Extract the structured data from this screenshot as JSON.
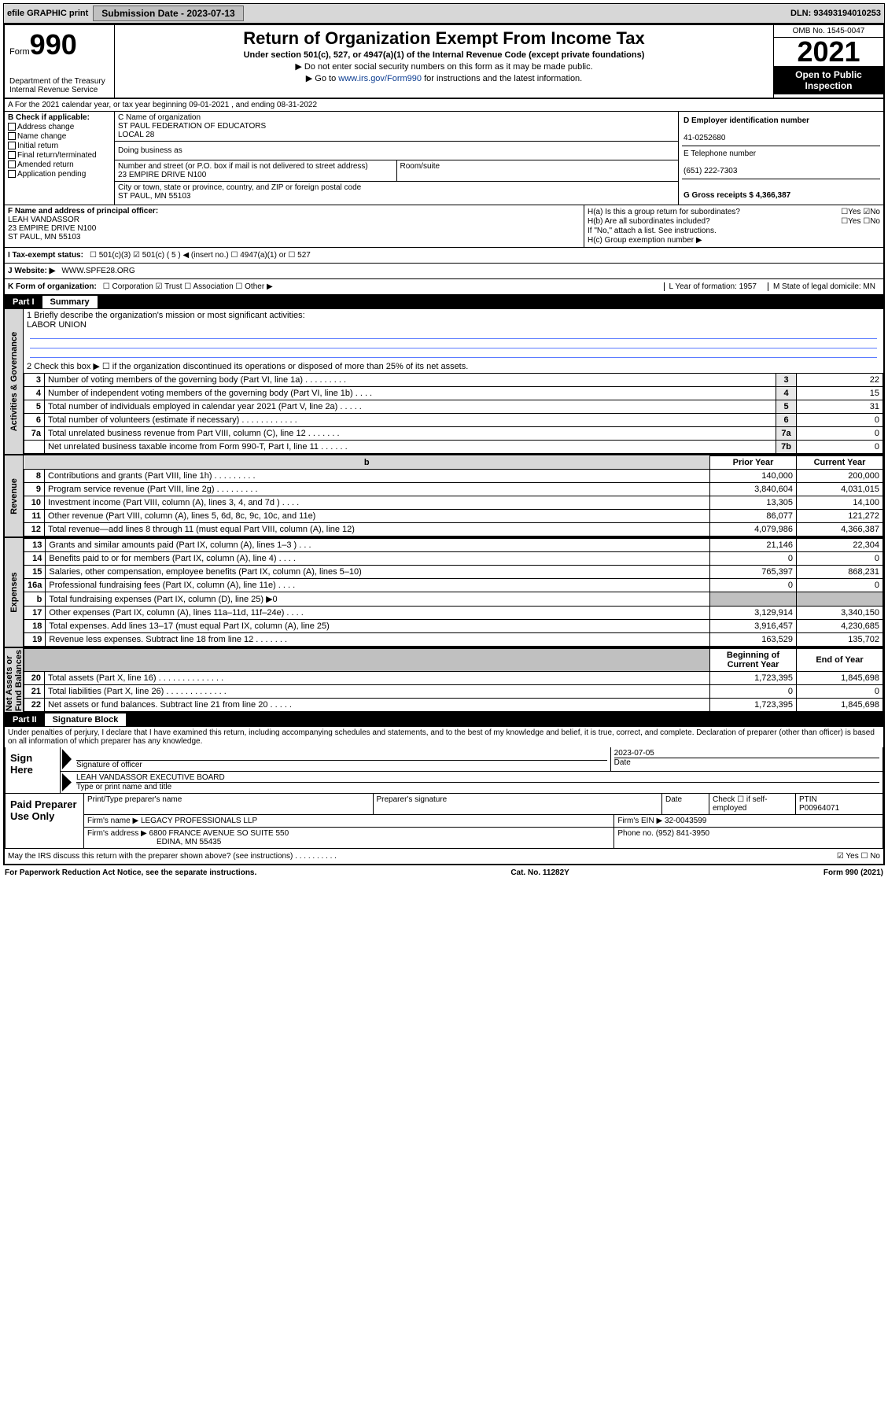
{
  "topbar": {
    "efile": "efile GRAPHIC print",
    "subdate_label": "Submission Date - 2023-07-13",
    "dln": "DLN: 93493194010253"
  },
  "header": {
    "form_word": "Form",
    "form_num": "990",
    "dept": "Department of the Treasury\nInternal Revenue Service",
    "title": "Return of Organization Exempt From Income Tax",
    "sub": "Under section 501(c), 527, or 4947(a)(1) of the Internal Revenue Code (except private foundations)",
    "note1": "▶ Do not enter social security numbers on this form as it may be made public.",
    "note2a": "▶ Go to ",
    "note2link": "www.irs.gov/Form990",
    "note2b": " for instructions and the latest information.",
    "omb": "OMB No. 1545-0047",
    "year": "2021",
    "open": "Open to Public Inspection"
  },
  "row_a": "A For the 2021 calendar year, or tax year beginning 09-01-2021   , and ending 08-31-2022",
  "col_b": {
    "head": "B Check if applicable:",
    "items": [
      "Address change",
      "Name change",
      "Initial return",
      "Final return/terminated",
      "Amended return",
      "Application pending"
    ]
  },
  "col_c": {
    "name_lbl": "C Name of organization",
    "name": "ST PAUL FEDERATION OF EDUCATORS\nLOCAL 28",
    "dba_lbl": "Doing business as",
    "addr_lbl": "Number and street (or P.O. box if mail is not delivered to street address)",
    "addr": "23 EMPIRE DRIVE N100",
    "room_lbl": "Room/suite",
    "city_lbl": "City or town, state or province, country, and ZIP or foreign postal code",
    "city": "ST PAUL, MN  55103"
  },
  "col_d": {
    "d_lbl": "D Employer identification number",
    "d_val": "41-0252680",
    "e_lbl": "E Telephone number",
    "e_val": "(651) 222-7303",
    "g_lbl": "G Gross receipts $ 4,366,387"
  },
  "block_f": {
    "lbl": "F Name and address of principal officer:",
    "name": "LEAH VANDASSOR",
    "addr1": "23 EMPIRE DRIVE N100",
    "addr2": "ST PAUL, MN  55103"
  },
  "block_h": {
    "ha": "H(a)  Is this a group return for subordinates?",
    "ha_ans": "☐Yes ☑No",
    "hb": "H(b)  Are all subordinates included?",
    "hb_ans": "☐Yes ☐No",
    "hb_note": "If \"No,\" attach a list. See instructions.",
    "hc": "H(c)  Group exemption number ▶"
  },
  "row_i": {
    "lbl": "I   Tax-exempt status:",
    "opts": "☐ 501(c)(3)   ☑ 501(c) ( 5 ) ◀ (insert no.)   ☐ 4947(a)(1) or   ☐ 527"
  },
  "row_j": {
    "lbl": "J   Website: ▶",
    "val": "WWW.SPFE28.ORG"
  },
  "row_k": {
    "lbl": "K Form of organization:",
    "opts": "☐ Corporation  ☑ Trust  ☐ Association  ☐ Other ▶",
    "l": "L Year of formation: 1957",
    "m": "M State of legal domicile: MN"
  },
  "part1": {
    "num": "Part I",
    "title": "Summary"
  },
  "gov": {
    "q1": "1   Briefly describe the organization's mission or most significant activities:",
    "q1val": "LABOR UNION",
    "q2": "2   Check this box ▶ ☐  if the organization discontinued its operations or disposed of more than 25% of its net assets.",
    "rows": [
      {
        "n": "3",
        "d": "Number of voting members of the governing body (Part VI, line 1a)   .    .    .    .    .    .    .    .    .",
        "l": "3",
        "v": "22"
      },
      {
        "n": "4",
        "d": "Number of independent voting members of the governing body (Part VI, line 1b)    .    .    .    .",
        "l": "4",
        "v": "15"
      },
      {
        "n": "5",
        "d": "Total number of individuals employed in calendar year 2021 (Part V, line 2a)   .    .    .    .    .",
        "l": "5",
        "v": "31"
      },
      {
        "n": "6",
        "d": "Total number of volunteers (estimate if necessary)    .    .    .    .    .    .    .    .    .    .    .    .",
        "l": "6",
        "v": "0"
      },
      {
        "n": "7a",
        "d": "Total unrelated business revenue from Part VIII, column (C), line 12   .    .    .    .    .    .    .",
        "l": "7a",
        "v": "0"
      },
      {
        "n": "",
        "d": "Net unrelated business taxable income from Form 990-T, Part I, line 11   .    .    .    .    .    .",
        "l": "7b",
        "v": "0"
      }
    ]
  },
  "rev": {
    "h1": "Prior Year",
    "h2": "Current Year",
    "rows": [
      {
        "n": "8",
        "d": "Contributions and grants (Part VIII, line 1h)   .    .    .    .    .    .    .    .    .",
        "p": "140,000",
        "c": "200,000"
      },
      {
        "n": "9",
        "d": "Program service revenue (Part VIII, line 2g)   .    .    .    .    .    .    .    .    .",
        "p": "3,840,604",
        "c": "4,031,015"
      },
      {
        "n": "10",
        "d": "Investment income (Part VIII, column (A), lines 3, 4, and 7d )   .    .    .    .",
        "p": "13,305",
        "c": "14,100"
      },
      {
        "n": "11",
        "d": "Other revenue (Part VIII, column (A), lines 5, 6d, 8c, 9c, 10c, and 11e)",
        "p": "86,077",
        "c": "121,272"
      },
      {
        "n": "12",
        "d": "Total revenue—add lines 8 through 11 (must equal Part VIII, column (A), line 12)",
        "p": "4,079,986",
        "c": "4,366,387"
      }
    ]
  },
  "exp": {
    "rows": [
      {
        "n": "13",
        "d": "Grants and similar amounts paid (Part IX, column (A), lines 1–3 )   .    .    .",
        "p": "21,146",
        "c": "22,304"
      },
      {
        "n": "14",
        "d": "Benefits paid to or for members (Part IX, column (A), line 4)   .    .    .    .",
        "p": "0",
        "c": "0"
      },
      {
        "n": "15",
        "d": "Salaries, other compensation, employee benefits (Part IX, column (A), lines 5–10)",
        "p": "765,397",
        "c": "868,231"
      },
      {
        "n": "16a",
        "d": "Professional fundraising fees (Part IX, column (A), line 11e)   .    .    .    .",
        "p": "0",
        "c": "0"
      },
      {
        "n": "b",
        "d": "Total fundraising expenses (Part IX, column (D), line 25) ▶0",
        "p": "",
        "c": "",
        "shade": true
      },
      {
        "n": "17",
        "d": "Other expenses (Part IX, column (A), lines 11a–11d, 11f–24e)   .    .    .    .",
        "p": "3,129,914",
        "c": "3,340,150"
      },
      {
        "n": "18",
        "d": "Total expenses. Add lines 13–17 (must equal Part IX, column (A), line 25)",
        "p": "3,916,457",
        "c": "4,230,685"
      },
      {
        "n": "19",
        "d": "Revenue less expenses. Subtract line 18 from line 12   .    .    .    .    .    .    .",
        "p": "163,529",
        "c": "135,702"
      }
    ]
  },
  "net": {
    "h1": "Beginning of Current Year",
    "h2": "End of Year",
    "rows": [
      {
        "n": "20",
        "d": "Total assets (Part X, line 16)   .    .    .    .    .    .    .    .    .    .    .    .    .    .",
        "p": "1,723,395",
        "c": "1,845,698"
      },
      {
        "n": "21",
        "d": "Total liabilities (Part X, line 26)   .    .    .    .    .    .    .    .    .    .    .    .    .",
        "p": "0",
        "c": "0"
      },
      {
        "n": "22",
        "d": "Net assets or fund balances. Subtract line 21 from line 20   .    .    .    .    .",
        "p": "1,723,395",
        "c": "1,845,698"
      }
    ]
  },
  "part2": {
    "num": "Part II",
    "title": "Signature Block"
  },
  "decl": "Under penalties of perjury, I declare that I have examined this return, including accompanying schedules and statements, and to the best of my knowledge and belief, it is true, correct, and complete. Declaration of preparer (other than officer) is based on all information of which preparer has any knowledge.",
  "sign": {
    "lbl": "Sign Here",
    "date": "2023-07-05",
    "sig_lbl": "Signature of officer",
    "date_lbl": "Date",
    "name": "LEAH VANDASSOR  EXECUTIVE BOARD",
    "name_lbl": "Type or print name and title"
  },
  "prep": {
    "lbl": "Paid Preparer Use Only",
    "h1": "Print/Type preparer's name",
    "h2": "Preparer's signature",
    "h3": "Date",
    "ck": "Check ☐ if self-employed",
    "ptin_lbl": "PTIN",
    "ptin": "P00964071",
    "firm_lbl": "Firm's name    ▶",
    "firm": "LEGACY PROFESSIONALS LLP",
    "ein_lbl": "Firm's EIN ▶",
    "ein": "32-0043599",
    "addr_lbl": "Firm's address ▶",
    "addr1": "6800 FRANCE AVENUE SO SUITE 550",
    "addr2": "EDINA, MN  55435",
    "ph_lbl": "Phone no.",
    "ph": "(952) 841-3950"
  },
  "may": {
    "q": "May the IRS discuss this return with the preparer shown above? (see instructions)    .    .    .    .    .    .    .    .    .    .",
    "a": "☑ Yes  ☐ No"
  },
  "foot": {
    "l": "For Paperwork Reduction Act Notice, see the separate instructions.",
    "c": "Cat. No. 11282Y",
    "r": "Form 990 (2021)"
  }
}
